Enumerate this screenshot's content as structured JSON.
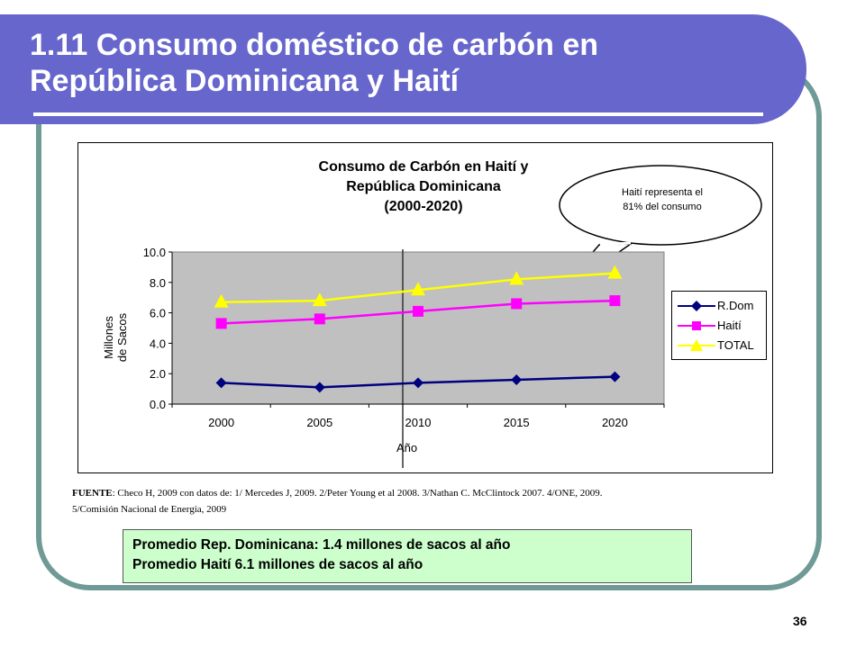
{
  "slide": {
    "title_line1": "1.11 Consumo doméstico de carbón en",
    "title_line2": "República Dominicana y Haití",
    "page_number": "36"
  },
  "callout": {
    "line1": "Haití representa el",
    "line2": "81%  del consumo"
  },
  "source": {
    "label": "FUENTE",
    "text_line1": ": Checo H, 2009 con datos de: 1/ Mercedes J, 2009. 2/Peter Young et al 2008. 3/Nathan C. McClintock 2007. 4/ONE, 2009.",
    "text_line2": "5/Comisión Nacional de Energía, 2009"
  },
  "averages": {
    "line1": "Promedio Rep. Dominicana: 1.4 millones de sacos al año",
    "line2": "Promedio Haití 6.1 millones de sacos al año"
  },
  "colors": {
    "title_bar": "#6666cc",
    "frame": "#6f9a96",
    "plot_bg": "#c0c0c0",
    "rdom": "#000080",
    "haiti": "#ff00ff",
    "total": "#ffff00",
    "avg_box": "#ccffcc"
  },
  "chart_data": {
    "type": "line",
    "title_line1": "Consumo de Carbón en Haití y",
    "title_line2": "República Dominicana",
    "title_line3": "(2000-2020)",
    "xlabel": "Año",
    "ylabel_line1": "Millones",
    "ylabel_line2": "de Sacos",
    "categories": [
      "2000",
      "2005",
      "2010",
      "2015",
      "2020"
    ],
    "yticks": [
      "0.0",
      "2.0",
      "4.0",
      "6.0",
      "8.0",
      "10.0"
    ],
    "ylim": [
      0,
      10
    ],
    "grid": false,
    "legend_position": "right",
    "series": [
      {
        "name": "R.Dom",
        "marker": "diamond",
        "values": [
          1.4,
          1.1,
          1.4,
          1.6,
          1.8
        ]
      },
      {
        "name": "Haití",
        "marker": "square",
        "values": [
          5.3,
          5.6,
          6.1,
          6.6,
          6.8
        ]
      },
      {
        "name": "TOTAL",
        "marker": "triangle",
        "values": [
          6.7,
          6.8,
          7.5,
          8.2,
          8.6
        ]
      }
    ]
  }
}
